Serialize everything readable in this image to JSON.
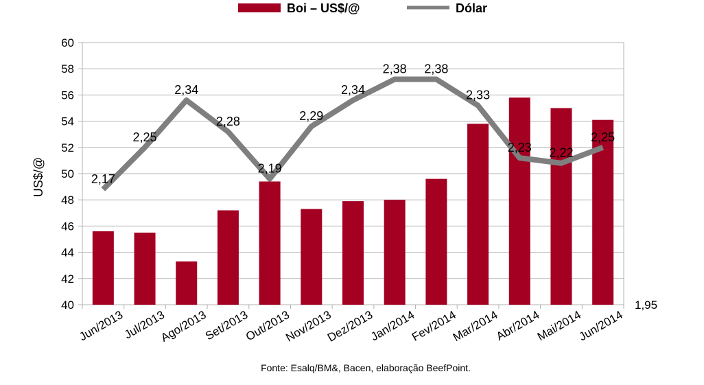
{
  "chart_data": {
    "type": "bar",
    "categories": [
      "Jun/2013",
      "Jul/2013",
      "Ago/2013",
      "Set/2013",
      "Out/2013",
      "Nov/2013",
      "Dez/2013",
      "Jan/2014",
      "Fev/2014",
      "Mar/2014",
      "Abr/2014",
      "Mai/2014",
      "Jun/2014"
    ],
    "series": [
      {
        "name": "Boi – US$/@",
        "type": "bar",
        "axis": "left",
        "color": "#a30022",
        "values": [
          45.6,
          45.5,
          43.3,
          47.2,
          49.4,
          47.3,
          47.9,
          48.0,
          49.6,
          53.8,
          55.8,
          55.0,
          54.1
        ]
      },
      {
        "name": "Dólar",
        "type": "line",
        "axis": "right",
        "color": "#7f7f7f",
        "values": [
          2.17,
          2.25,
          2.34,
          2.28,
          2.19,
          2.29,
          2.34,
          2.38,
          2.38,
          2.33,
          2.23,
          2.22,
          2.25
        ],
        "data_labels": [
          "2,17",
          "2,25",
          "2,34",
          "2,28",
          "2,19",
          "2,29",
          "2,34",
          "2,38",
          "2,38",
          "2,33",
          "2,23",
          "2,22",
          "2,25"
        ]
      }
    ],
    "ylabel": "US$/@",
    "ylim": [
      40,
      60
    ],
    "yticks": [
      "40",
      "42",
      "44",
      "46",
      "48",
      "50",
      "52",
      "54",
      "56",
      "58",
      "60"
    ],
    "y2lim": [
      1.95,
      2.45
    ],
    "y2ticks": [
      "1,95"
    ],
    "grid": true,
    "legend": "top-center",
    "source": "Fonte: Esalq/BM&, Bacen, elaboração BeefPoint."
  }
}
